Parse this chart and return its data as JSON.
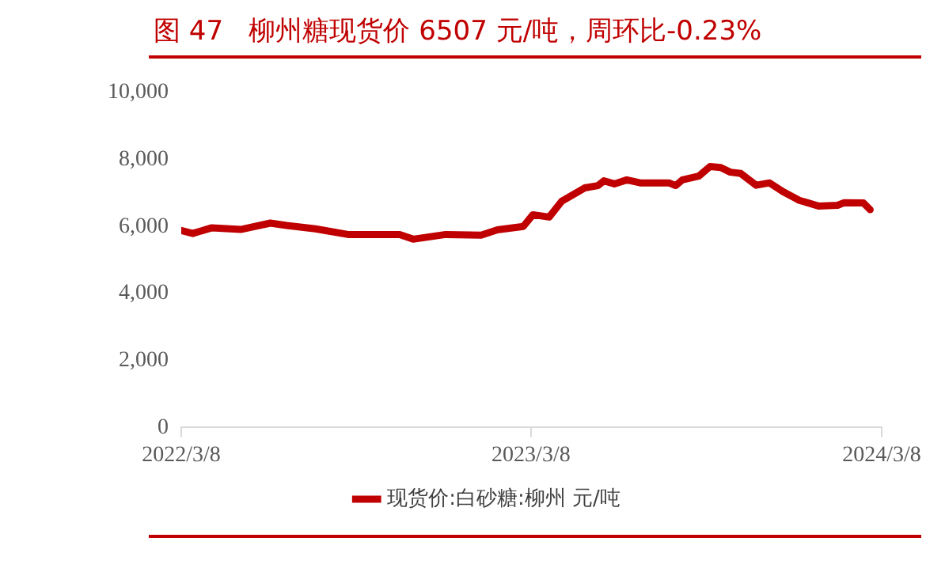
{
  "chart_data": {
    "type": "line",
    "title": "图 47   柳州糖现货价 6507 元/吨，周环比-0.23%",
    "x": [
      "2022-03-08",
      "2022-03-20",
      "2022-04-09",
      "2022-05-09",
      "2022-06-09",
      "2022-06-26",
      "2022-07-26",
      "2022-08-29",
      "2022-10-22",
      "2022-11-05",
      "2022-12-09",
      "2023-01-15",
      "2023-02-01",
      "2023-02-28",
      "2023-03-10",
      "2023-03-27",
      "2023-04-09",
      "2023-05-03",
      "2023-05-17",
      "2023-05-23",
      "2023-06-03",
      "2023-06-16",
      "2023-06-30",
      "2023-07-30",
      "2023-08-06",
      "2023-08-13",
      "2023-08-30",
      "2023-09-11",
      "2023-09-22",
      "2023-10-02",
      "2023-10-13",
      "2023-10-29",
      "2023-11-12",
      "2023-11-26",
      "2023-12-13",
      "2024-01-02",
      "2024-01-22",
      "2024-01-29",
      "2024-02-18",
      "2024-02-25"
    ],
    "series": [
      {
        "name": "现货价:白砂糖:柳州 元/吨",
        "color": "#c00000",
        "values": [
          5880,
          5790,
          5960,
          5910,
          6100,
          6030,
          5930,
          5760,
          5760,
          5620,
          5760,
          5740,
          5900,
          6000,
          6350,
          6280,
          6750,
          7150,
          7220,
          7360,
          7270,
          7390,
          7300,
          7300,
          7220,
          7390,
          7500,
          7790,
          7760,
          7620,
          7580,
          7230,
          7300,
          7040,
          6780,
          6610,
          6630,
          6710,
          6700,
          6500
        ]
      }
    ],
    "xlim": [
      "2022-03-08",
      "2024-03-08"
    ],
    "xticks": [
      {
        "value": "2022-03-08",
        "label": "2022/3/8"
      },
      {
        "value": "2023-03-08",
        "label": "2023/3/8"
      },
      {
        "value": "2024-03-08",
        "label": "2024/3/8"
      }
    ],
    "ylim": [
      0,
      10000
    ],
    "yticks": [
      {
        "value": 0,
        "label": "0"
      },
      {
        "value": 2000,
        "label": "2,000"
      },
      {
        "value": 4000,
        "label": "4,000"
      },
      {
        "value": 6000,
        "label": "6,000"
      },
      {
        "value": 8000,
        "label": "8,000"
      },
      {
        "value": 10000,
        "label": "10,000"
      }
    ],
    "grid": false,
    "legend": "bottom",
    "marker": "none",
    "line_style": "solid"
  }
}
